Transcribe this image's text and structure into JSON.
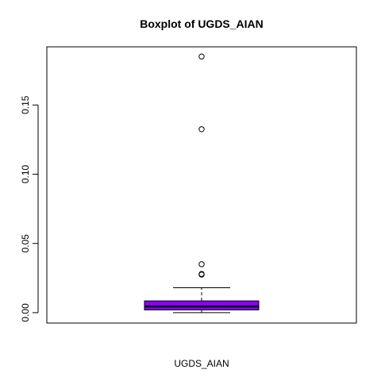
{
  "chart_data": {
    "type": "boxplot",
    "title": "Boxplot of UGDS_AIAN",
    "xlabel": "UGDS_AIAN",
    "ylabel": "",
    "ylim": [
      -0.0075,
      0.192
    ],
    "yticks": [
      0.0,
      0.05,
      0.1,
      0.15
    ],
    "ytick_labels": [
      "0.00",
      "0.05",
      "0.10",
      "0.15"
    ],
    "grid": false,
    "series": [
      {
        "whisker_low": 0.0,
        "q1": 0.002,
        "median": 0.0045,
        "q3": 0.0085,
        "whisker_high": 0.018,
        "outliers": [
          0.0275,
          0.028,
          0.035,
          0.1325,
          0.185
        ]
      }
    ],
    "colors": {
      "box_fill": "#8B00FF",
      "stroke": "#000000"
    }
  }
}
